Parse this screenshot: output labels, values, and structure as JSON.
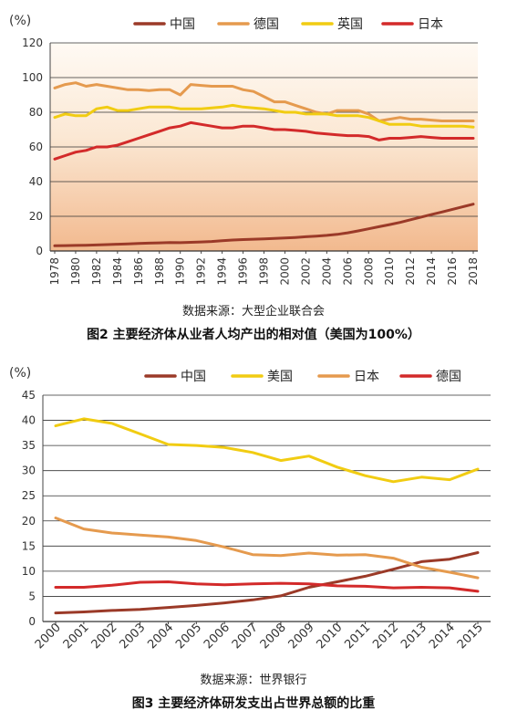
{
  "chart_data": [
    {
      "type": "line",
      "unit_label": "(%)",
      "ylim": [
        0,
        120
      ],
      "yticks": [
        "0",
        "20",
        "40",
        "60",
        "80",
        "100",
        "120"
      ],
      "categories": [
        "1978",
        "1979",
        "1980",
        "1981",
        "1982",
        "1983",
        "1984",
        "1985",
        "1986",
        "1987",
        "1988",
        "1989",
        "1990",
        "1991",
        "1992",
        "1993",
        "1994",
        "1995",
        "1996",
        "1997",
        "1998",
        "1999",
        "2000",
        "2001",
        "2002",
        "2003",
        "2004",
        "2005",
        "2006",
        "2007",
        "2008",
        "2009",
        "2010",
        "2011",
        "2012",
        "2013",
        "2014",
        "2015",
        "2016",
        "2017",
        "2018"
      ],
      "xtick_labels": [
        "1978",
        "1980",
        "1982",
        "1984",
        "1986",
        "1988",
        "1990",
        "1992",
        "1994",
        "1996",
        "1998",
        "2000",
        "2002",
        "2004",
        "2006",
        "2008",
        "2010",
        "2012",
        "2014",
        "2016",
        "2018"
      ],
      "series": [
        {
          "name": "中国",
          "color": "#9b3a28",
          "values": [
            3,
            3.1,
            3.2,
            3.3,
            3.5,
            3.7,
            3.9,
            4.1,
            4.3,
            4.5,
            4.7,
            4.9,
            4.8,
            5.0,
            5.2,
            5.5,
            5.9,
            6.3,
            6.6,
            6.8,
            7.0,
            7.2,
            7.5,
            7.8,
            8.2,
            8.6,
            9.0,
            9.6,
            10.5,
            11.6,
            12.8,
            14.0,
            15.2,
            16.5,
            18.0,
            19.5,
            21.0,
            22.5,
            24.0,
            25.5,
            27.0
          ]
        },
        {
          "name": "德国",
          "color": "#e59a4e",
          "values": [
            94,
            96,
            97,
            95,
            96,
            95,
            94,
            93,
            93,
            92.5,
            93,
            93,
            90,
            96,
            95.5,
            95,
            95,
            95,
            93,
            92,
            89,
            86,
            86,
            84,
            82,
            80,
            79,
            81,
            81,
            81,
            79,
            75,
            76,
            77,
            76,
            76,
            75.5,
            75,
            75,
            75,
            75
          ]
        },
        {
          "name": "英国",
          "color": "#f1cc12",
          "values": [
            77,
            79,
            78,
            78,
            82,
            83,
            81,
            81,
            82,
            83,
            83,
            83,
            82,
            82,
            82,
            82.5,
            83,
            84,
            83,
            82.5,
            82,
            81,
            80,
            80,
            79,
            79,
            79,
            78,
            78,
            78,
            77,
            75,
            73,
            73,
            73,
            72,
            72,
            72,
            72,
            72,
            71.5
          ]
        },
        {
          "name": "日本",
          "color": "#d32a2a",
          "values": [
            53,
            55,
            57,
            58,
            60,
            60,
            61,
            63,
            65,
            67,
            69,
            71,
            72,
            74,
            73,
            72,
            71,
            71,
            72,
            72,
            71,
            70,
            70,
            69.5,
            69,
            68,
            67.5,
            67,
            66.5,
            66.5,
            66,
            64,
            65,
            65,
            65.5,
            66,
            65.5,
            65,
            65,
            65,
            65
          ]
        }
      ],
      "source": "数据来源：大型企业联合会",
      "caption": "图2  主要经济体从业者人均产出的相对值（美国为100%）"
    },
    {
      "type": "line",
      "unit_label": "(%)",
      "ylim": [
        0,
        45
      ],
      "yticks": [
        "0",
        "5",
        "10",
        "15",
        "20",
        "25",
        "30",
        "35",
        "40",
        "45"
      ],
      "categories": [
        "2000",
        "2001",
        "2002",
        "2003",
        "2004",
        "2005",
        "2006",
        "2007",
        "2008",
        "2009",
        "2010",
        "2011",
        "2012",
        "2013",
        "2014",
        "2015"
      ],
      "xtick_labels": [
        "2000",
        "2001",
        "2002",
        "2003",
        "2004",
        "2005",
        "2006",
        "2007",
        "2008",
        "2009",
        "2010",
        "2011",
        "2012",
        "2013",
        "2014",
        "2015"
      ],
      "series": [
        {
          "name": "中国",
          "color": "#9b3a28",
          "values": [
            1.7,
            1.9,
            2.2,
            2.4,
            2.8,
            3.2,
            3.7,
            4.3,
            5.1,
            6.8,
            7.9,
            9.0,
            10.4,
            11.9,
            12.4,
            13.7
          ]
        },
        {
          "name": "美国",
          "color": "#f1cc12",
          "values": [
            38.9,
            40.3,
            39.4,
            37.3,
            35.2,
            35.0,
            34.6,
            33.6,
            32.0,
            32.9,
            30.7,
            29.0,
            27.8,
            28.7,
            28.2,
            30.3
          ]
        },
        {
          "name": "日本",
          "color": "#e59a4e",
          "values": [
            20.6,
            18.4,
            17.6,
            17.2,
            16.8,
            16.1,
            14.8,
            13.3,
            13.1,
            13.6,
            13.2,
            13.3,
            12.6,
            10.8,
            9.8,
            8.7
          ]
        },
        {
          "name": "德国",
          "color": "#d32a2a",
          "values": [
            6.8,
            6.8,
            7.2,
            7.8,
            7.9,
            7.5,
            7.3,
            7.5,
            7.6,
            7.5,
            7.1,
            7.0,
            6.7,
            6.8,
            6.7,
            6.0
          ]
        }
      ],
      "source": "数据来源：世界银行",
      "caption": "图3  主要经济体研发支出占世界总额的比重"
    }
  ]
}
